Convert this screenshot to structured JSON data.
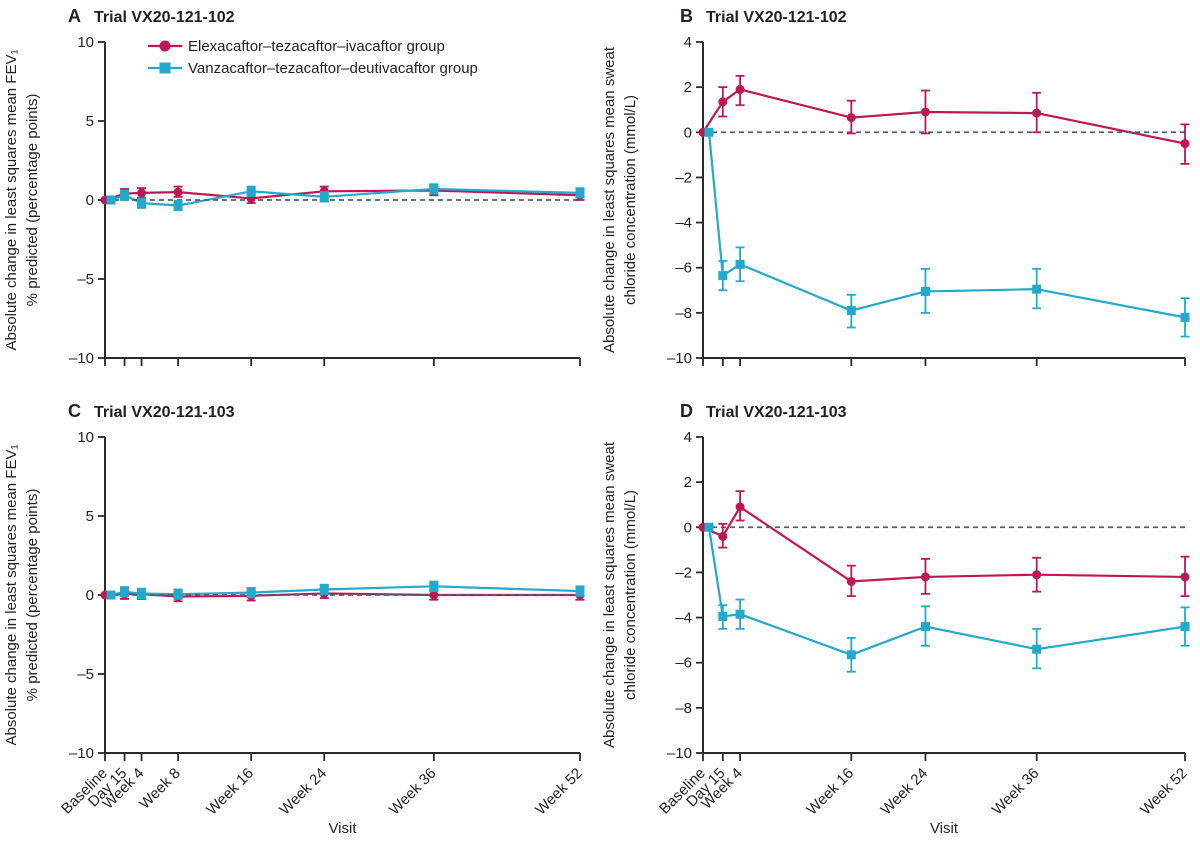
{
  "figure": {
    "background": "#ffffff",
    "xlabel": "Visit"
  },
  "colors": {
    "elexacaftor": "#C01656",
    "vanzacaftor": "#22A9CC",
    "zero_line": "#50616B",
    "axis": "#2B2A29",
    "text": "#231F20"
  },
  "legend": {
    "position": "top-left-panel-A",
    "items": [
      {
        "label": "Elexacaftor–tezacaftor–ivacaftor group",
        "marker": "circle",
        "color": "elexacaftor"
      },
      {
        "label": "Vanzacaftor–tezacaftor–deutivacaftor group",
        "marker": "square",
        "color": "vanzacaftor"
      }
    ]
  },
  "chart_data": [
    {
      "panel": "A",
      "panel_label": "A",
      "title": "Trial VX20-121-102",
      "type": "line",
      "ylabel_lines": [
        "Absolute change in least squares mean FEV₁",
        "% predicted (percentage points)"
      ],
      "xlabel": "Visit",
      "ylim": [
        -10,
        10
      ],
      "yticks": [
        10,
        5,
        0,
        -5,
        -10
      ],
      "zero_line": 0,
      "grid": false,
      "show_x_labels": false,
      "show_legend": true,
      "x_weeks": [
        0,
        2.14,
        4,
        8,
        16,
        24,
        36,
        52
      ],
      "x_labels": [
        "Baseline",
        "Day 15",
        "Week 4",
        "Week 8",
        "Week 16",
        "Week 24",
        "Week 36",
        "Week 52"
      ],
      "series": [
        {
          "name": "Elexacaftor–tezacaftor–ivacaftor group",
          "color": "elexacaftor",
          "marker": "circle",
          "values": [
            0,
            0.4,
            0.45,
            0.5,
            0.1,
            0.55,
            0.6,
            0.3
          ],
          "err_low": [
            0,
            0.1,
            0.15,
            0.2,
            -0.2,
            0.25,
            0.3,
            0.0
          ],
          "err_high": [
            0,
            0.7,
            0.75,
            0.85,
            0.4,
            0.85,
            0.9,
            0.6
          ]
        },
        {
          "name": "Vanzacaftor–tezacaftor–deutivacaftor group",
          "color": "vanzacaftor",
          "marker": "square",
          "values": [
            0,
            0.3,
            -0.2,
            -0.35,
            0.55,
            0.2,
            0.7,
            0.45
          ],
          "err_low": [
            0,
            0.0,
            -0.5,
            -0.65,
            0.25,
            -0.1,
            0.4,
            0.15
          ],
          "err_high": [
            0,
            0.6,
            0.1,
            -0.05,
            0.85,
            0.5,
            1.0,
            0.75
          ]
        }
      ]
    },
    {
      "panel": "B",
      "panel_label": "B",
      "title": "Trial VX20-121-102",
      "type": "line",
      "ylabel_lines": [
        "Absolute change in least squares mean sweat",
        "chloride concentration (mmol/L)"
      ],
      "xlabel": "Visit",
      "ylim": [
        -10,
        4
      ],
      "yticks": [
        4,
        2,
        0,
        -2,
        -4,
        -6,
        -8,
        -10
      ],
      "zero_line": 0,
      "grid": false,
      "show_x_labels": false,
      "show_legend": false,
      "x_weeks": [
        0,
        2.14,
        4,
        16,
        24,
        36,
        52
      ],
      "x_labels": [
        "Baseline",
        "Day 15",
        "Week 4",
        "Week 16",
        "Week 24",
        "Week 36",
        "Week 52"
      ],
      "series": [
        {
          "name": "Elexacaftor–tezacaftor–ivacaftor group",
          "color": "elexacaftor",
          "marker": "circle",
          "values": [
            0,
            1.35,
            1.9,
            0.65,
            0.9,
            0.85,
            -0.5
          ],
          "err_low": [
            0,
            0.7,
            1.2,
            -0.05,
            -0.05,
            0.0,
            -1.4
          ],
          "err_high": [
            0,
            2.0,
            2.5,
            1.4,
            1.85,
            1.75,
            0.35
          ]
        },
        {
          "name": "Vanzacaftor–tezacaftor–deutivacaftor group",
          "color": "vanzacaftor",
          "marker": "square",
          "values": [
            0,
            -6.35,
            -5.85,
            -7.9,
            -7.05,
            -6.95,
            -8.2
          ],
          "err_low": [
            0,
            -7.0,
            -6.6,
            -8.65,
            -8.0,
            -7.8,
            -9.05
          ],
          "err_high": [
            0,
            -5.7,
            -5.1,
            -7.2,
            -6.05,
            -6.05,
            -7.35
          ]
        }
      ]
    },
    {
      "panel": "C",
      "panel_label": "C",
      "title": "Trial VX20-121-103",
      "type": "line",
      "ylabel_lines": [
        "Absolute change in least squares mean FEV₁",
        "% predicted (percentage points)"
      ],
      "xlabel": "Visit",
      "ylim": [
        -10,
        10
      ],
      "yticks": [
        10,
        5,
        0,
        -5,
        -10
      ],
      "zero_line": 0,
      "grid": false,
      "show_x_labels": true,
      "show_legend": false,
      "x_weeks": [
        0,
        2.14,
        4,
        8,
        16,
        24,
        36,
        52
      ],
      "x_labels": [
        "Baseline",
        "Day 15",
        "Week 4",
        "Week 8",
        "Week 16",
        "Week 24",
        "Week 36",
        "Week 52"
      ],
      "series": [
        {
          "name": "Elexacaftor–tezacaftor–ivacaftor group",
          "color": "elexacaftor",
          "marker": "circle",
          "values": [
            0,
            0.05,
            0.05,
            -0.1,
            -0.05,
            0.1,
            0.0,
            0.0
          ],
          "err_low": [
            0,
            -0.25,
            -0.25,
            -0.4,
            -0.35,
            -0.2,
            -0.3,
            -0.3
          ],
          "err_high": [
            0,
            0.35,
            0.35,
            0.2,
            0.25,
            0.4,
            0.3,
            0.3
          ]
        },
        {
          "name": "Vanzacaftor–tezacaftor–deutivacaftor group",
          "color": "vanzacaftor",
          "marker": "square",
          "values": [
            0,
            0.2,
            0.1,
            0.05,
            0.15,
            0.35,
            0.55,
            0.25
          ],
          "err_low": [
            0,
            -0.1,
            -0.2,
            -0.25,
            -0.15,
            0.05,
            0.25,
            -0.05
          ],
          "err_high": [
            0,
            0.5,
            0.4,
            0.35,
            0.45,
            0.65,
            0.85,
            0.55
          ]
        }
      ]
    },
    {
      "panel": "D",
      "panel_label": "D",
      "title": "Trial VX20-121-103",
      "type": "line",
      "ylabel_lines": [
        "Absolute change in least squares mean sweat",
        "chloride concentration (mmol/L)"
      ],
      "xlabel": "Visit",
      "ylim": [
        -10,
        4
      ],
      "yticks": [
        4,
        2,
        0,
        -2,
        -4,
        -6,
        -8,
        -10
      ],
      "zero_line": 0,
      "grid": false,
      "show_x_labels": true,
      "show_legend": false,
      "x_weeks": [
        0,
        2.14,
        4,
        16,
        24,
        36,
        52
      ],
      "x_labels": [
        "Baseline",
        "Day 15",
        "Week 4",
        "Week 16",
        "Week 24",
        "Week 36",
        "Week 52"
      ],
      "series": [
        {
          "name": "Elexacaftor–tezacaftor–ivacaftor group",
          "color": "elexacaftor",
          "marker": "circle",
          "values": [
            0,
            -0.4,
            0.9,
            -2.4,
            -2.2,
            -2.1,
            -2.2
          ],
          "err_low": [
            0,
            -0.9,
            0.3,
            -3.05,
            -2.95,
            -2.85,
            -3.05
          ],
          "err_high": [
            0,
            0.15,
            1.6,
            -1.7,
            -1.4,
            -1.35,
            -1.3
          ]
        },
        {
          "name": "Vanzacaftor–tezacaftor–deutivacaftor group",
          "color": "vanzacaftor",
          "marker": "square",
          "values": [
            0,
            -3.95,
            -3.85,
            -5.65,
            -4.4,
            -5.4,
            -4.4
          ],
          "err_low": [
            0,
            -4.5,
            -4.5,
            -6.4,
            -5.25,
            -6.25,
            -5.25
          ],
          "err_high": [
            0,
            -3.45,
            -3.2,
            -4.9,
            -3.5,
            -4.5,
            -3.55
          ]
        }
      ]
    }
  ]
}
